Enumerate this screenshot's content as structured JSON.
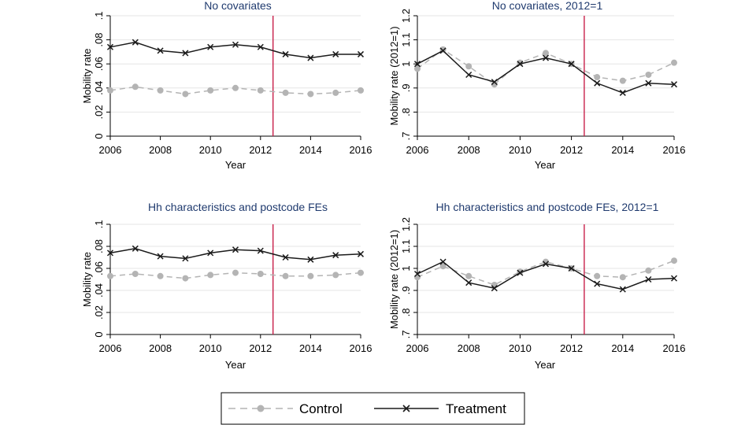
{
  "colors": {
    "control": "#b4b4b4",
    "treatment": "#1a1a1a",
    "policy_line": "#c8204a",
    "title": "#1f3a6e",
    "grid": "#e6e6e6"
  },
  "legend": {
    "placement": "bottom-center",
    "items": [
      "Control",
      "Treatment"
    ]
  },
  "chart_data": [
    {
      "type": "line",
      "title": "No covariates",
      "xlabel": "Year",
      "ylabel": "Mobility rate",
      "x": [
        2006,
        2007,
        2008,
        2009,
        2010,
        2011,
        2012,
        2013,
        2014,
        2015,
        2016
      ],
      "xticks": [
        "2006",
        "2008",
        "2010",
        "2012",
        "2014",
        "2016"
      ],
      "yticks": [
        "0",
        ".02",
        ".04",
        ".06",
        ".08",
        ".1"
      ],
      "xlim": [
        2006,
        2016
      ],
      "ylim": [
        0,
        0.1
      ],
      "grid": true,
      "vline": 2012.5,
      "series": [
        {
          "name": "Control",
          "marker": "circle",
          "dash": true,
          "values": [
            0.038,
            0.041,
            0.038,
            0.035,
            0.038,
            0.04,
            0.038,
            0.036,
            0.035,
            0.036,
            0.038
          ]
        },
        {
          "name": "Treatment",
          "marker": "x",
          "dash": false,
          "values": [
            0.074,
            0.078,
            0.071,
            0.069,
            0.074,
            0.076,
            0.074,
            0.068,
            0.065,
            0.068,
            0.068
          ]
        }
      ]
    },
    {
      "type": "line",
      "title": "No covariates, 2012=1",
      "xlabel": "Year",
      "ylabel": "Mobility rate (2012=1)",
      "x": [
        2006,
        2007,
        2008,
        2009,
        2010,
        2011,
        2012,
        2013,
        2014,
        2015,
        2016
      ],
      "xticks": [
        "2006",
        "2008",
        "2010",
        "2012",
        "2014",
        "2016"
      ],
      "yticks": [
        ".7",
        ".8",
        ".9",
        "1",
        "1.1",
        "1.2"
      ],
      "xlim": [
        2006,
        2016
      ],
      "ylim": [
        0.7,
        1.2
      ],
      "grid": true,
      "vline": 2012.5,
      "series": [
        {
          "name": "Control",
          "marker": "circle",
          "dash": true,
          "values": [
            0.98,
            1.06,
            0.99,
            0.915,
            1.005,
            1.045,
            1.0,
            0.945,
            0.93,
            0.955,
            1.005
          ]
        },
        {
          "name": "Treatment",
          "marker": "x",
          "dash": false,
          "values": [
            1.0,
            1.055,
            0.955,
            0.925,
            1.0,
            1.025,
            1.0,
            0.92,
            0.88,
            0.92,
            0.915
          ]
        }
      ]
    },
    {
      "type": "line",
      "title": "Hh characteristics and postcode FEs",
      "xlabel": "Year",
      "ylabel": "Mobility rate",
      "x": [
        2006,
        2007,
        2008,
        2009,
        2010,
        2011,
        2012,
        2013,
        2014,
        2015,
        2016
      ],
      "xticks": [
        "2006",
        "2008",
        "2010",
        "2012",
        "2014",
        "2016"
      ],
      "yticks": [
        "0",
        ".02",
        ".04",
        ".06",
        ".08",
        ".1"
      ],
      "xlim": [
        2006,
        2016
      ],
      "ylim": [
        0,
        0.1
      ],
      "grid": true,
      "vline": 2012.5,
      "series": [
        {
          "name": "Control",
          "marker": "circle",
          "dash": true,
          "values": [
            0.053,
            0.055,
            0.053,
            0.051,
            0.054,
            0.056,
            0.055,
            0.053,
            0.053,
            0.054,
            0.056
          ]
        },
        {
          "name": "Treatment",
          "marker": "x",
          "dash": false,
          "values": [
            0.074,
            0.078,
            0.071,
            0.069,
            0.074,
            0.077,
            0.076,
            0.07,
            0.068,
            0.072,
            0.073
          ]
        }
      ]
    },
    {
      "type": "line",
      "title": "Hh characteristics and postcode FEs, 2012=1",
      "xlabel": "Year",
      "ylabel": "Mobility rate (2012=1)",
      "x": [
        2006,
        2007,
        2008,
        2009,
        2010,
        2011,
        2012,
        2013,
        2014,
        2015,
        2016
      ],
      "xticks": [
        "2006",
        "2008",
        "2010",
        "2012",
        "2014",
        "2016"
      ],
      "yticks": [
        ".7",
        ".8",
        ".9",
        "1",
        "1.1",
        "1.2"
      ],
      "xlim": [
        2006,
        2016
      ],
      "ylim": [
        0.7,
        1.2
      ],
      "grid": true,
      "vline": 2012.5,
      "series": [
        {
          "name": "Control",
          "marker": "circle",
          "dash": true,
          "values": [
            0.96,
            1.01,
            0.965,
            0.925,
            0.985,
            1.03,
            1.0,
            0.965,
            0.96,
            0.99,
            1.035
          ]
        },
        {
          "name": "Treatment",
          "marker": "x",
          "dash": false,
          "values": [
            0.975,
            1.03,
            0.935,
            0.91,
            0.98,
            1.02,
            1.0,
            0.93,
            0.905,
            0.95,
            0.955
          ]
        }
      ]
    }
  ]
}
